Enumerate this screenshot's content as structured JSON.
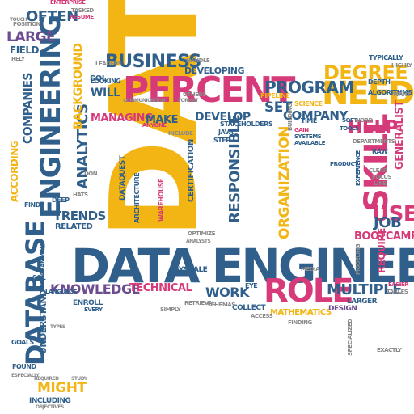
{
  "colors": {
    "blue": "#2f5f8a",
    "pink": "#d63a78",
    "yellow": "#f2b513",
    "purple": "#6d4c8f",
    "gray": "#8a8a8a",
    "navy": "#3d3d5c"
  },
  "words": [
    {
      "text": "DATA",
      "color": "yellow"
    },
    {
      "text": "DATA ENGINEER",
      "color": "blue"
    },
    {
      "text": "PERCENT",
      "color": "pink"
    },
    {
      "text": "NEED",
      "color": "yellow"
    },
    {
      "text": "SKILL",
      "color": "pink"
    },
    {
      "text": "ROLE",
      "color": "pink"
    },
    {
      "text": "ENGINEERING",
      "color": "blue"
    },
    {
      "text": "DATABASE",
      "color": "blue"
    },
    {
      "text": "BUSINESS",
      "color": "blue"
    },
    {
      "text": "DEGREE",
      "color": "yellow"
    },
    {
      "text": "PROGRAM",
      "color": "blue"
    },
    {
      "text": "COMPANY",
      "color": "blue"
    },
    {
      "text": "HELP",
      "color": "pink"
    },
    {
      "text": "USE",
      "color": "pink"
    },
    {
      "text": "JOB",
      "color": "blue"
    },
    {
      "text": "MULTIPLE",
      "color": "blue"
    },
    {
      "text": "KNOWLEDGE",
      "color": "purple"
    },
    {
      "text": "TECHNICAL",
      "color": "pink"
    },
    {
      "text": "WORK",
      "color": "blue"
    },
    {
      "text": "TRENDS",
      "color": "blue"
    },
    {
      "text": "RESPONSIBLE",
      "color": "blue"
    },
    {
      "text": "ORGANIZATION",
      "color": "yellow"
    },
    {
      "text": "ANALYTICS",
      "color": "blue"
    },
    {
      "text": "OFTEN",
      "color": "blue"
    },
    {
      "text": "LARGE",
      "color": "purple"
    },
    {
      "text": "FIELD",
      "color": "blue"
    },
    {
      "text": "COMPANIES",
      "color": "blue"
    },
    {
      "text": "ACCORDING",
      "color": "yellow"
    },
    {
      "text": "BACKGROUND",
      "color": "yellow"
    },
    {
      "text": "WILL",
      "color": "blue"
    },
    {
      "text": "MANAGING",
      "color": "pink"
    },
    {
      "text": "MAKE",
      "color": "blue"
    },
    {
      "text": "DEVELOP",
      "color": "blue"
    },
    {
      "text": "SET",
      "color": "blue"
    },
    {
      "text": "DEVELOPING",
      "color": "blue"
    },
    {
      "text": "GENERALIST",
      "color": "pink"
    },
    {
      "text": "BOOTCAMP",
      "color": "pink"
    },
    {
      "text": "REQUIRE",
      "color": "pink"
    },
    {
      "text": "MATHEMATICS",
      "color": "yellow"
    },
    {
      "text": "MIGHT",
      "color": "yellow"
    },
    {
      "text": "UNDERSTAND",
      "color": "blue"
    },
    {
      "text": "INCLUDING",
      "color": "blue"
    },
    {
      "text": "RELATED",
      "color": "blue"
    },
    {
      "text": "DATAQUEST",
      "color": "blue"
    },
    {
      "text": "CERTIFICATION",
      "color": "blue"
    },
    {
      "text": "DESIGN",
      "color": "purple"
    },
    {
      "text": "COLLECT",
      "color": "blue"
    },
    {
      "text": "LARGER",
      "color": "blue"
    },
    {
      "text": "STAKEHOLDERS",
      "color": "blue"
    },
    {
      "text": "ALGORITHMS",
      "color": "blue"
    },
    {
      "text": "TYPICALLY",
      "color": "blue"
    },
    {
      "text": "DEPTH",
      "color": "blue"
    },
    {
      "text": "PIPELINE",
      "color": "yellow"
    },
    {
      "text": "SCIENCE",
      "color": "yellow"
    },
    {
      "text": "PAYSCALE",
      "color": "blue"
    },
    {
      "text": "WAREHOUSE",
      "color": "pink"
    },
    {
      "text": "ARCHITECTURE",
      "color": "blue"
    },
    {
      "text": "SQL",
      "color": "blue"
    },
    {
      "text": "LOOKING",
      "color": "blue"
    },
    {
      "text": "ENTERPRISE",
      "color": "pink"
    },
    {
      "text": "RESUME",
      "color": "pink"
    },
    {
      "text": "POSITION",
      "color": "gray"
    },
    {
      "text": "SQL",
      "color": "blue"
    },
    {
      "text": "GOALS",
      "color": "blue"
    },
    {
      "text": "FOUND",
      "color": "blue"
    },
    {
      "text": "ENROLL",
      "color": "blue"
    },
    {
      "text": "EYE",
      "color": "blue"
    },
    {
      "text": "TIME",
      "color": "blue"
    },
    {
      "text": "JAVA",
      "color": "blue"
    },
    {
      "text": "STEP",
      "color": "blue"
    },
    {
      "text": "RAW",
      "color": "blue"
    },
    {
      "text": "GAIN",
      "color": "pink"
    },
    {
      "text": "SYSTEMS",
      "color": "blue"
    },
    {
      "text": "AVAILABLE",
      "color": "blue"
    },
    {
      "text": "SOFT",
      "color": "blue"
    },
    {
      "text": "TOOLS",
      "color": "blue"
    },
    {
      "text": "DEEP",
      "color": "blue"
    },
    {
      "text": "FIND",
      "color": "blue"
    },
    {
      "text": "EVERY",
      "color": "blue"
    },
    {
      "text": "RELY",
      "color": "gray"
    },
    {
      "text": "HANDLE",
      "color": "gray"
    },
    {
      "text": "LEADERS",
      "color": "gray"
    },
    {
      "text": "ANYONE",
      "color": "pink"
    },
    {
      "text": "EXPERIENCE",
      "color": "blue"
    },
    {
      "text": "PRODUCT",
      "color": "blue"
    },
    {
      "text": "MODELING",
      "color": "gray"
    },
    {
      "text": "CLEAR",
      "color": "gray"
    },
    {
      "text": "FOCUS",
      "color": "gray"
    },
    {
      "text": "LINE",
      "color": "gray"
    },
    {
      "text": "OTHERS",
      "color": "gray"
    },
    {
      "text": "HATS",
      "color": "gray"
    },
    {
      "text": "DON",
      "color": "gray"
    },
    {
      "text": "OPTIMIZE",
      "color": "gray"
    },
    {
      "text": "RETRIEVAL",
      "color": "gray"
    },
    {
      "text": "ACCESS",
      "color": "gray"
    },
    {
      "text": "FINDING",
      "color": "gray"
    },
    {
      "text": "EASIER",
      "color": "pink"
    },
    {
      "text": "TABLES",
      "color": "gray"
    },
    {
      "text": "EXACTLY",
      "color": "gray"
    },
    {
      "text": "SPECIALIZED",
      "color": "gray"
    },
    {
      "text": "SCHEMAS",
      "color": "gray"
    },
    {
      "text": "MEDIA",
      "color": "gray"
    },
    {
      "text": "SIMPLY",
      "color": "gray"
    },
    {
      "text": "WORD",
      "color": "gray"
    },
    {
      "text": "DEPARTMENTS",
      "color": "gray"
    },
    {
      "text": "WANT",
      "color": "gray"
    },
    {
      "text": "HIGHLY",
      "color": "gray"
    },
    {
      "text": "TASKED",
      "color": "gray"
    },
    {
      "text": "OBJECTIVES",
      "color": "gray"
    },
    {
      "text": "ESPECIALLY",
      "color": "gray"
    },
    {
      "text": "BUILDING",
      "color": "gray"
    },
    {
      "text": "PROGRAMMING",
      "color": "blue"
    },
    {
      "text": "LANGUAGE",
      "color": "blue"
    },
    {
      "text": "INCLUDE",
      "color": "gray"
    },
    {
      "text": "REQUIRED",
      "color": "gray"
    },
    {
      "text": "STUDY",
      "color": "gray"
    },
    {
      "text": "TYPES",
      "color": "gray"
    },
    {
      "text": "ANALYSTS",
      "color": "gray"
    },
    {
      "text": "FORMAT",
      "color": "gray"
    },
    {
      "text": "COMMUNICATION",
      "color": "gray"
    },
    {
      "text": "TOUCH",
      "color": "gray"
    }
  ]
}
